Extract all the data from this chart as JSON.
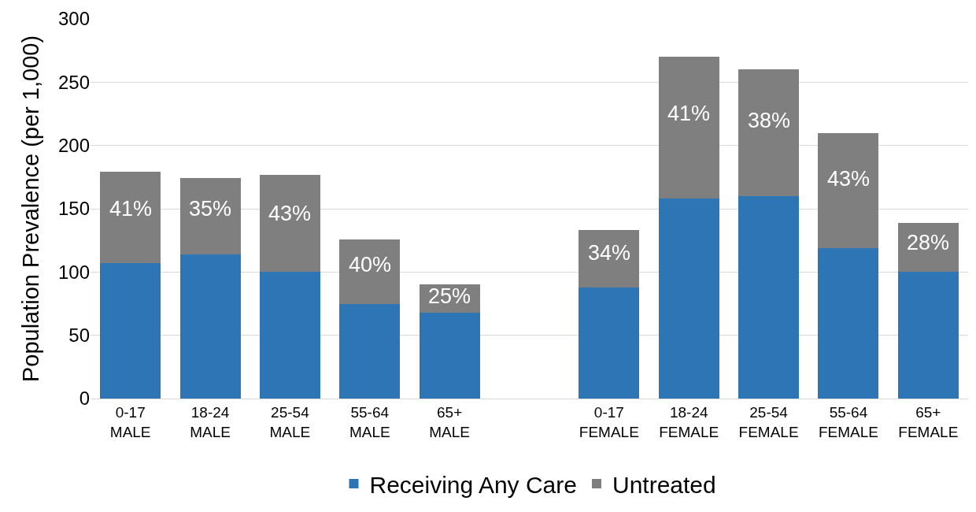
{
  "chart_data": {
    "type": "bar",
    "stacked": true,
    "ylabel": "Population Prevalence (per 1,000)",
    "categories": [
      "0-17\nMALE",
      "18-24\nMALE",
      "25-54\nMALE",
      "55-64\nMALE",
      "65+\nMALE",
      null,
      "0-17\nFEMALE",
      "18-24\nFEMALE",
      "25-54\nFEMALE",
      "55-64\nFEMALE",
      "65+\nFEMALE"
    ],
    "series": [
      {
        "name": "Receiving Any Care",
        "color": "#2e75b6",
        "values": [
          107,
          114,
          100,
          75,
          68,
          null,
          88,
          158,
          160,
          119,
          100
        ]
      },
      {
        "name": "Untreated",
        "color": "#7f7f7f",
        "values": [
          72,
          60,
          77,
          51,
          22,
          null,
          45,
          112,
          100,
          91,
          39
        ]
      }
    ],
    "annotations": [
      "41%",
      "35%",
      "43%",
      "40%",
      "25%",
      "34%",
      "41%",
      "38%",
      "43%",
      "28%"
    ],
    "ylim": [
      0,
      300
    ],
    "yticks": [
      0,
      50,
      100,
      150,
      200,
      250,
      300
    ],
    "grid": "y",
    "legend": "bottom"
  }
}
